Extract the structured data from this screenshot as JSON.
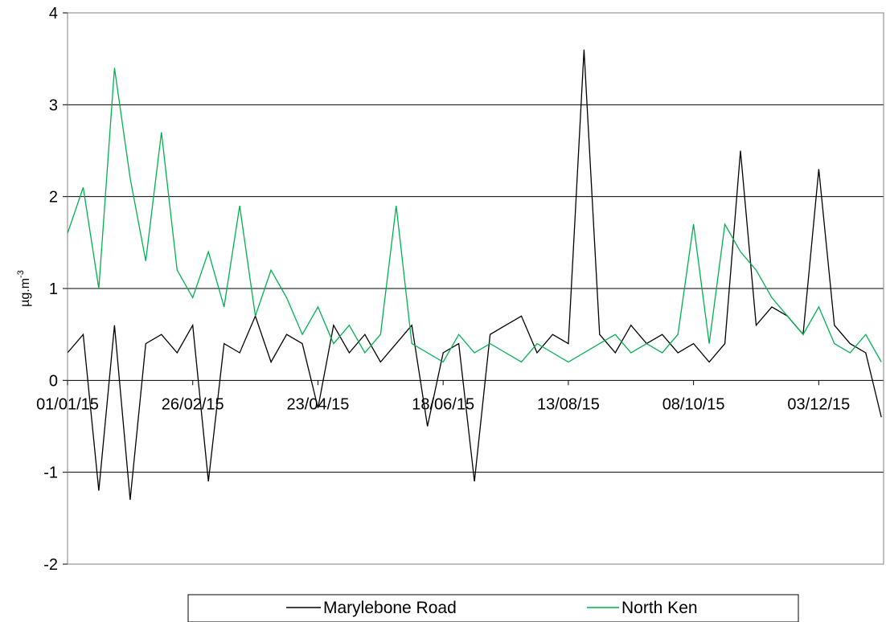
{
  "chart_data": {
    "type": "line",
    "title": "",
    "xlabel": "",
    "ylabel": "µg.m",
    "ylabel_superscript": "-3",
    "ylim": [
      -2,
      4
    ],
    "yticks": [
      -2,
      -1,
      0,
      1,
      2,
      3,
      4
    ],
    "xlim": [
      "01/01/15",
      "31/12/15"
    ],
    "xticks": [
      "01/01/15",
      "26/02/15",
      "23/04/15",
      "18/06/15",
      "13/08/15",
      "08/10/15",
      "03/12/15"
    ],
    "grid": "horizontal",
    "legend_position": "bottom",
    "series": [
      {
        "name": "Marylebone Road",
        "color": "#000000",
        "x": [
          "01/01/15",
          "08/01/15",
          "15/01/15",
          "22/01/15",
          "29/01/15",
          "05/02/15",
          "12/02/15",
          "19/02/15",
          "26/02/15",
          "05/03/15",
          "12/03/15",
          "19/03/15",
          "26/03/15",
          "02/04/15",
          "09/04/15",
          "16/04/15",
          "23/04/15",
          "30/04/15",
          "07/05/15",
          "14/05/15",
          "21/05/15",
          "28/05/15",
          "04/06/15",
          "11/06/15",
          "18/06/15",
          "25/06/15",
          "02/07/15",
          "09/07/15",
          "16/07/15",
          "23/07/15",
          "30/07/15",
          "06/08/15",
          "13/08/15",
          "20/08/15",
          "27/08/15",
          "03/09/15",
          "10/09/15",
          "17/09/15",
          "24/09/15",
          "01/10/15",
          "08/10/15",
          "15/10/15",
          "22/10/15",
          "29/10/15",
          "05/11/15",
          "12/11/15",
          "19/11/15",
          "26/11/15",
          "03/12/15",
          "10/12/15",
          "17/12/15",
          "24/12/15",
          "31/12/15"
        ],
        "values": [
          0.3,
          0.5,
          -1.2,
          0.6,
          -1.3,
          0.4,
          0.5,
          0.3,
          0.6,
          -1.1,
          0.4,
          0.3,
          0.7,
          0.2,
          0.5,
          0.4,
          -0.3,
          0.6,
          0.3,
          0.5,
          0.2,
          0.4,
          0.6,
          -0.5,
          0.3,
          0.4,
          -1.1,
          0.5,
          0.6,
          0.7,
          0.3,
          0.5,
          0.4,
          3.6,
          0.5,
          0.3,
          0.6,
          0.4,
          0.5,
          0.3,
          0.4,
          0.2,
          0.4,
          2.5,
          0.6,
          0.8,
          0.7,
          0.5,
          2.3,
          0.6,
          0.4,
          0.3,
          -0.4
        ]
      },
      {
        "name": "North Ken",
        "color": "#00b050",
        "x": [
          "01/01/15",
          "08/01/15",
          "15/01/15",
          "22/01/15",
          "29/01/15",
          "05/02/15",
          "12/02/15",
          "19/02/15",
          "26/02/15",
          "05/03/15",
          "12/03/15",
          "19/03/15",
          "26/03/15",
          "02/04/15",
          "09/04/15",
          "16/04/15",
          "23/04/15",
          "30/04/15",
          "07/05/15",
          "14/05/15",
          "21/05/15",
          "28/05/15",
          "04/06/15",
          "11/06/15",
          "18/06/15",
          "25/06/15",
          "02/07/15",
          "09/07/15",
          "16/07/15",
          "23/07/15",
          "30/07/15",
          "06/08/15",
          "13/08/15",
          "20/08/15",
          "27/08/15",
          "03/09/15",
          "10/09/15",
          "17/09/15",
          "24/09/15",
          "01/10/15",
          "08/10/15",
          "15/10/15",
          "22/10/15",
          "29/10/15",
          "05/11/15",
          "12/11/15",
          "19/11/15",
          "26/11/15",
          "03/12/15",
          "10/12/15",
          "17/12/15",
          "24/12/15",
          "31/12/15"
        ],
        "values": [
          1.6,
          2.1,
          1.0,
          3.4,
          2.2,
          1.3,
          2.7,
          1.2,
          0.9,
          1.4,
          0.8,
          1.9,
          0.7,
          1.2,
          0.9,
          0.5,
          0.8,
          0.4,
          0.6,
          0.3,
          0.5,
          1.9,
          0.4,
          0.3,
          0.2,
          0.5,
          0.3,
          0.4,
          0.3,
          0.2,
          0.4,
          0.3,
          0.2,
          0.3,
          0.4,
          0.5,
          0.3,
          0.4,
          0.3,
          0.5,
          1.7,
          0.4,
          1.7,
          1.4,
          1.2,
          0.9,
          0.7,
          0.5,
          0.8,
          0.4,
          0.3,
          0.5,
          0.2
        ]
      }
    ]
  }
}
